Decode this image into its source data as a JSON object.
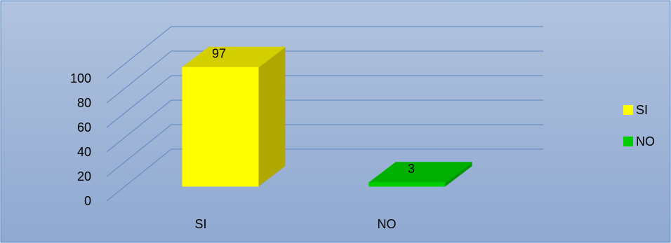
{
  "chart_data": {
    "type": "bar",
    "categories": [
      "SI",
      "NO"
    ],
    "values": [
      97,
      3
    ],
    "yticks": [
      "0",
      "20",
      "40",
      "60",
      "80",
      "100"
    ],
    "ylim": [
      0,
      100
    ],
    "legend": {
      "placement": "right",
      "items": [
        {
          "label": "SI",
          "color": "#FFFF00"
        },
        {
          "label": "NO",
          "color": "#00CC00"
        }
      ]
    },
    "colors": {
      "background_top": "#B1C3DE",
      "background_bottom": "#8FA9D1",
      "gridline": "#5B86C0",
      "border": "#4F81BD",
      "text": "#000000",
      "si_front": "#FFFF00",
      "si_top": "#D4D000",
      "si_side": "#B0A800",
      "no_front": "#00CC00",
      "no_top": "#00B000",
      "no_side": "#009900"
    },
    "grid": true,
    "three_d": true
  }
}
